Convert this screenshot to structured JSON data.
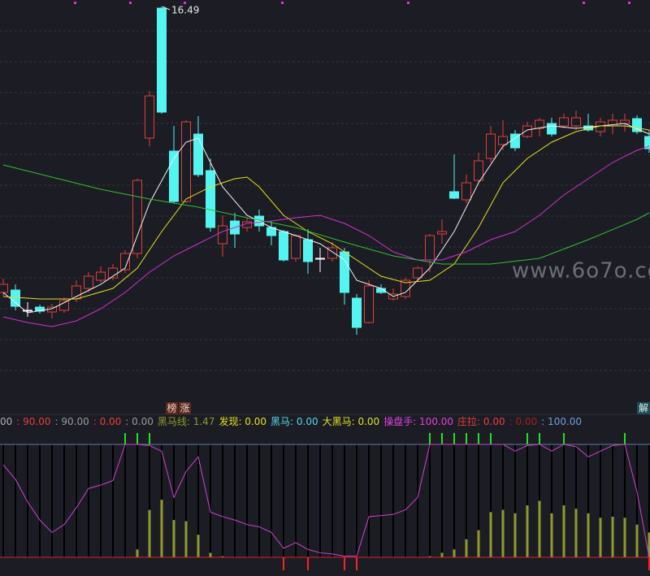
{
  "chart_data": [
    {
      "type": "candlestick",
      "ylim": [
        11.67,
        16.57
      ],
      "up_color": "#e0403a",
      "down_color": "#54f4f0",
      "flat_color": "#ffffff",
      "open": [
        12.97,
        13.0,
        12.75,
        12.79,
        12.73,
        12.75,
        12.89,
        13.02,
        13.12,
        13.15,
        13.25,
        13.45,
        14.87,
        16.47,
        14.71,
        14.09,
        14.92,
        14.47,
        13.57,
        13.85,
        13.77,
        13.91,
        13.77,
        13.72,
        13.39,
        13.62,
        13.39,
        13.39,
        13.47,
        12.9,
        12.6,
        13.02,
        12.89,
        12.92,
        13.15,
        13.37,
        13.69,
        14.21,
        14.11,
        14.35,
        14.62,
        14.79,
        14.92,
        14.89,
        14.99,
        15.05,
        15.02,
        15.02,
        15.02,
        14.95,
        15.02,
        15.05,
        15.11,
        14.89
      ],
      "close": [
        13.07,
        12.8,
        12.75,
        12.74,
        12.79,
        12.87,
        13.05,
        13.17,
        13.22,
        13.27,
        13.45,
        14.35,
        15.39,
        15.19,
        14.09,
        15.07,
        14.42,
        13.77,
        13.79,
        13.69,
        13.84,
        13.79,
        13.67,
        13.37,
        13.67,
        13.35,
        13.39,
        13.52,
        12.97,
        12.54,
        13.05,
        12.97,
        12.95,
        13.12,
        13.27,
        13.67,
        13.72,
        14.13,
        14.32,
        14.59,
        14.92,
        14.89,
        14.75,
        15.02,
        15.09,
        14.92,
        15.12,
        15.12,
        14.97,
        15.07,
        15.09,
        15.09,
        14.95,
        14.74
      ],
      "high": [
        13.14,
        13.07,
        12.85,
        12.82,
        12.83,
        12.91,
        13.12,
        13.22,
        13.29,
        13.32,
        13.49,
        14.37,
        15.45,
        16.49,
        15.02,
        15.09,
        15.14,
        14.62,
        13.92,
        13.95,
        13.89,
        13.99,
        13.85,
        13.74,
        13.69,
        13.75,
        13.52,
        13.59,
        13.52,
        12.95,
        13.12,
        13.07,
        13.02,
        13.15,
        13.29,
        13.69,
        13.87,
        14.67,
        14.42,
        14.69,
        15.02,
        15.09,
        14.97,
        15.07,
        15.12,
        15.12,
        15.17,
        15.21,
        15.17,
        15.12,
        15.17,
        15.17,
        15.15,
        14.97
      ],
      "low": [
        12.92,
        12.75,
        12.67,
        12.71,
        12.65,
        12.72,
        12.85,
        12.97,
        13.09,
        13.12,
        13.21,
        13.39,
        14.77,
        15.17,
        14.07,
        14.07,
        14.39,
        13.72,
        13.41,
        13.52,
        13.72,
        13.72,
        13.55,
        13.35,
        13.35,
        13.2,
        13.22,
        13.35,
        12.82,
        12.45,
        12.59,
        12.95,
        12.87,
        12.89,
        13.12,
        13.22,
        13.57,
        14.12,
        14.07,
        14.32,
        14.57,
        14.72,
        14.71,
        14.87,
        14.89,
        14.89,
        14.99,
        14.97,
        14.95,
        14.89,
        14.92,
        14.95,
        14.92,
        14.69
      ],
      "lines": [
        {
          "color": "#f2f2f2",
          "x": [
            0,
            2,
            4,
            6,
            8,
            10,
            12,
            14,
            15,
            16,
            17,
            18,
            20,
            22,
            24,
            26,
            28,
            29,
            31,
            32,
            33,
            35,
            37,
            39,
            41,
            43,
            45,
            47,
            49,
            51,
            53
          ],
          "values": [
            12.97,
            12.72,
            12.77,
            12.92,
            13.07,
            13.27,
            14.07,
            14.62,
            14.82,
            14.87,
            14.57,
            14.27,
            13.92,
            13.77,
            13.67,
            13.57,
            13.37,
            13.12,
            13.02,
            12.92,
            12.97,
            13.27,
            13.72,
            14.32,
            14.77,
            14.97,
            15.02,
            14.99,
            15.02,
            15.05,
            14.92
          ]
        },
        {
          "color": "#e6e020",
          "x": [
            0,
            3,
            6,
            9,
            11,
            13,
            15,
            17,
            19,
            20,
            21,
            23,
            25,
            27,
            29,
            31,
            33,
            35,
            37,
            39,
            41,
            43,
            45,
            47,
            49,
            51,
            53
          ],
          "values": [
            12.92,
            12.89,
            12.89,
            13.02,
            13.27,
            13.72,
            14.12,
            14.27,
            14.37,
            14.39,
            14.27,
            13.92,
            13.72,
            13.57,
            13.37,
            13.17,
            13.09,
            13.12,
            13.32,
            13.77,
            14.32,
            14.62,
            14.82,
            14.95,
            15.02,
            15.02,
            14.97
          ]
        },
        {
          "color": "#d030d0",
          "x": [
            0,
            2,
            4,
            6,
            8,
            10,
            12,
            14,
            16,
            18,
            20,
            22,
            24,
            26,
            28,
            30,
            32,
            34,
            36,
            38,
            40,
            42,
            44,
            46,
            48,
            50,
            52,
            53
          ],
          "values": [
            12.67,
            12.6,
            12.55,
            12.62,
            12.77,
            12.97,
            13.22,
            13.42,
            13.57,
            13.72,
            13.82,
            13.85,
            13.89,
            13.92,
            13.82,
            13.67,
            13.47,
            13.37,
            13.37,
            13.47,
            13.62,
            13.72,
            13.92,
            14.17,
            14.37,
            14.57,
            14.72,
            14.77
          ]
        },
        {
          "color": "#2fbf2f",
          "x": [
            0,
            4,
            8,
            12,
            16,
            20,
            24,
            28,
            32,
            36,
            40,
            44,
            48,
            52,
            53
          ],
          "values": [
            14.54,
            14.39,
            14.24,
            14.12,
            14.02,
            13.89,
            13.77,
            13.59,
            13.42,
            13.32,
            13.32,
            13.39,
            13.62,
            13.87,
            13.95
          ]
        }
      ]
    },
    {
      "type": "indicator",
      "ylim": [
        0,
        100
      ],
      "legend": [
        {
          "text": "00",
          "color": "#b0b0b0"
        },
        {
          "text": ": 90.00",
          "color": "#e0403a"
        },
        {
          "text": ": 90.00",
          "color": "#9a9a9a"
        },
        {
          "text": ": 0.00",
          "color": "#e0403a"
        },
        {
          "text": ": 0.00",
          "color": "#9a9a9a"
        },
        {
          "text": "黑马线: 1.47",
          "color": "#8f9a2a"
        },
        {
          "text": "发现: 0.00",
          "color": "#e6e020"
        },
        {
          "text": "黑马: 0.00",
          "color": "#54d8e8"
        },
        {
          "text": "大黑马: 0.00",
          "color": "#e6e020"
        },
        {
          "text": "操盘手: 100.00",
          "color": "#e040e0"
        },
        {
          "text": "庄拉: 0.00",
          "color": "#e0403a"
        },
        {
          "text": ": 0.00",
          "color": "#a02020"
        },
        {
          "text": ": 100.00",
          "color": "#6f9fe0"
        }
      ],
      "line": {
        "color": "#d040d0",
        "values": [
          82,
          69,
          49,
          33,
          22,
          29,
          44,
          61,
          64,
          68,
          100,
          100,
          99,
          94,
          53,
          76,
          89,
          40,
          36,
          33,
          29,
          27,
          22,
          8,
          13,
          7,
          4,
          3,
          1,
          1,
          36,
          37,
          38,
          42,
          53,
          100,
          100,
          100,
          100,
          100,
          100,
          100,
          94,
          99,
          100,
          94,
          100,
          98,
          89,
          94,
          99,
          100,
          58,
          0
        ]
      },
      "bars": {
        "color": "#8f9a2a",
        "values": [
          0,
          0,
          0,
          0,
          0,
          0,
          0,
          0,
          0,
          0,
          0,
          7,
          42,
          51,
          33,
          32,
          20,
          4,
          1,
          0,
          0,
          0,
          0,
          0,
          0,
          0,
          0,
          0,
          0,
          0,
          0,
          0,
          0,
          0,
          0,
          1,
          4,
          7,
          16,
          24,
          40,
          42,
          39,
          46,
          50,
          39,
          46,
          43,
          39,
          35,
          36,
          35,
          29,
          22
        ]
      },
      "signals_up": {
        "color": "#22e022",
        "x": [
          10,
          11,
          12,
          35,
          36,
          37,
          38,
          39,
          40,
          43,
          44,
          46,
          51
        ]
      },
      "signals_down": {
        "color": "#ff2020",
        "x": [
          23,
          25,
          28,
          29,
          53
        ]
      }
    }
  ],
  "badges": [
    "榜",
    "涨",
    "解"
  ],
  "watermark": "www.6o7o.com"
}
